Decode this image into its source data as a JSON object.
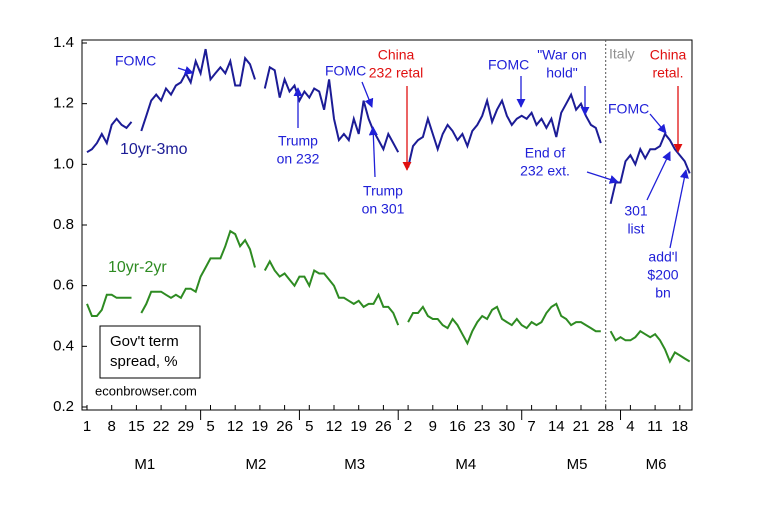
{
  "chart_data": {
    "type": "line",
    "categories": [
      "1",
      null,
      null,
      null,
      null,
      "8",
      null,
      null,
      null,
      null,
      "15",
      null,
      null,
      null,
      null,
      "22",
      null,
      null,
      null,
      null,
      "29",
      null,
      null,
      null,
      null,
      "5",
      null,
      null,
      null,
      null,
      "12",
      null,
      null,
      null,
      null,
      "19",
      null,
      null,
      null,
      null,
      "26",
      null,
      null,
      null,
      null,
      "5",
      null,
      null,
      null,
      null,
      "12",
      null,
      null,
      null,
      null,
      "19",
      null,
      null,
      null,
      null,
      "26",
      null,
      null,
      null,
      null,
      "2",
      null,
      null,
      null,
      null,
      "9",
      null,
      null,
      null,
      null,
      "16",
      null,
      null,
      null,
      null,
      "23",
      null,
      null,
      null,
      null,
      "30",
      null,
      null,
      null,
      null,
      "7",
      null,
      null,
      null,
      null,
      "14",
      null,
      null,
      null,
      null,
      "21",
      null,
      null,
      null,
      null,
      "28",
      null,
      null,
      null,
      null,
      "4",
      null,
      null,
      null,
      null,
      "11",
      null,
      null,
      null,
      null,
      "18",
      null,
      null
    ],
    "months": [
      "M1",
      "M2",
      "M3",
      "M4",
      "M5",
      "M6"
    ],
    "series": [
      {
        "name": "10yr-3mo",
        "color": "#1c1c96",
        "values": [
          1.04,
          1.05,
          1.07,
          1.1,
          1.07,
          1.13,
          1.15,
          1.13,
          1.12,
          1.14,
          null,
          1.11,
          1.16,
          1.21,
          1.23,
          1.21,
          1.25,
          1.23,
          1.26,
          1.27,
          1.3,
          1.27,
          1.34,
          1.3,
          1.38,
          1.28,
          1.3,
          1.32,
          1.3,
          1.34,
          1.26,
          1.26,
          1.35,
          1.33,
          1.28,
          null,
          1.25,
          1.32,
          1.31,
          1.22,
          1.28,
          1.24,
          1.26,
          1.21,
          1.24,
          1.22,
          1.25,
          1.24,
          1.18,
          1.28,
          1.15,
          1.08,
          1.1,
          1.08,
          1.15,
          1.1,
          1.21,
          1.15,
          1.11,
          1.08,
          1.05,
          1.1,
          1.07,
          1.04,
          null,
          0.99,
          1.06,
          1.08,
          1.09,
          1.15,
          1.1,
          1.05,
          1.1,
          1.13,
          1.11,
          1.08,
          1.1,
          1.06,
          1.11,
          1.13,
          1.16,
          1.21,
          1.14,
          1.18,
          1.21,
          1.16,
          1.13,
          1.15,
          1.16,
          1.15,
          1.17,
          1.13,
          1.15,
          1.12,
          1.15,
          1.09,
          1.17,
          1.2,
          1.23,
          1.18,
          1.2,
          1.16,
          1.13,
          1.12,
          1.07,
          null,
          0.87,
          0.94,
          0.94,
          1.01,
          1.03,
          1.0,
          1.05,
          1.02,
          1.05,
          1.05,
          1.06,
          1.1,
          1.08,
          1.05,
          1.03,
          1.01,
          0.97
        ]
      },
      {
        "name": "10yr-2yr",
        "color": "#2e8b22",
        "values": [
          0.54,
          0.5,
          0.5,
          0.52,
          0.57,
          0.57,
          0.56,
          0.56,
          0.56,
          0.56,
          null,
          0.51,
          0.54,
          0.58,
          0.58,
          0.58,
          0.57,
          0.56,
          0.57,
          0.56,
          0.59,
          0.59,
          0.58,
          0.63,
          0.66,
          0.69,
          0.69,
          0.69,
          0.73,
          0.78,
          0.77,
          0.73,
          0.75,
          0.72,
          0.66,
          null,
          0.65,
          0.68,
          0.65,
          0.63,
          0.64,
          0.62,
          0.6,
          0.63,
          0.63,
          0.6,
          0.65,
          0.64,
          0.64,
          0.62,
          0.6,
          0.56,
          0.56,
          0.55,
          0.54,
          0.55,
          0.53,
          0.54,
          0.54,
          0.57,
          0.53,
          0.53,
          0.51,
          0.47,
          null,
          0.48,
          0.51,
          0.51,
          0.53,
          0.5,
          0.49,
          0.49,
          0.47,
          0.46,
          0.49,
          0.47,
          0.44,
          0.41,
          0.45,
          0.48,
          0.5,
          0.49,
          0.52,
          0.53,
          0.49,
          0.48,
          0.47,
          0.49,
          0.47,
          0.46,
          0.48,
          0.47,
          0.48,
          0.51,
          0.53,
          0.54,
          0.5,
          0.49,
          0.47,
          0.48,
          0.48,
          0.47,
          0.46,
          0.45,
          0.45,
          null,
          0.45,
          0.42,
          0.43,
          0.42,
          0.42,
          0.43,
          0.45,
          0.44,
          0.43,
          0.44,
          0.42,
          0.39,
          0.35,
          0.38,
          0.37,
          0.36,
          0.35
        ]
      }
    ],
    "ylim": [
      0.2,
      1.4
    ],
    "yticks": [
      0.2,
      0.4,
      0.6,
      0.8,
      {
        "value": 1.0,
        "label": "1.0"
      },
      1.2,
      1.4
    ],
    "note_box": [
      "Gov't term",
      "spread, %"
    ],
    "source": "econbrowser.com",
    "annotations": [
      {
        "lines": [
          "FOMC"
        ],
        "color": "#2020d8"
      },
      {
        "lines": [
          "Trump",
          "on 232"
        ],
        "color": "#2020d8"
      },
      {
        "lines": [
          "FOMC"
        ],
        "color": "#2020d8"
      },
      {
        "lines": [
          "China",
          "232 retal"
        ],
        "color": "#e01010"
      },
      {
        "lines": [
          "Trump",
          "on 301"
        ],
        "color": "#2020d8"
      },
      {
        "lines": [
          "FOMC"
        ],
        "color": "#2020d8"
      },
      {
        "lines": [
          "\"War on",
          "hold\""
        ],
        "color": "#2020d8"
      },
      {
        "lines": [
          "Italy"
        ],
        "color": "#909090"
      },
      {
        "lines": [
          "China",
          "retal."
        ],
        "color": "#e01010"
      },
      {
        "lines": [
          "FOMC"
        ],
        "color": "#2020d8"
      },
      {
        "lines": [
          "End of",
          "232 ext."
        ],
        "color": "#2020d8"
      },
      {
        "lines": [
          "301",
          "list"
        ],
        "color": "#2020d8"
      },
      {
        "lines": [
          "add'l",
          "$200",
          "bn"
        ],
        "color": "#2020d8"
      }
    ]
  }
}
